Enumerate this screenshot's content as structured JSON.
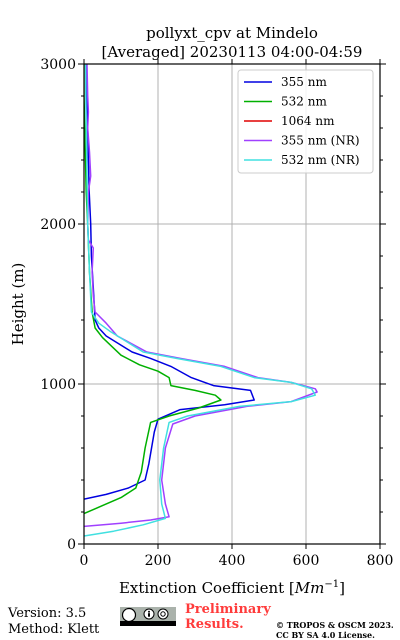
{
  "chart_data": {
    "type": "line",
    "title": "pollyxt_cpv at Mindelo",
    "subtitle": "[Averaged] 20230113 04:00-04:59",
    "xlabel": "Extinction Coefficient [",
    "xlabel_unit": "Mm",
    "xlabel_exp": "−1",
    "xlabel_end": "]",
    "ylabel": "Height (m)",
    "xlim": [
      0,
      800
    ],
    "ylim": [
      0,
      3000
    ],
    "xticks": [
      0,
      200,
      400,
      600,
      800
    ],
    "yticks": [
      0,
      1000,
      2000,
      3000
    ],
    "grid": true,
    "legend_position": "top-right",
    "series": [
      {
        "name": "355 nm",
        "color": "#0000e0",
        "points": [
          [
            0,
            280
          ],
          [
            60,
            310
          ],
          [
            120,
            350
          ],
          [
            165,
            400
          ],
          [
            175,
            500
          ],
          [
            190,
            700
          ],
          [
            200,
            780
          ],
          [
            260,
            840
          ],
          [
            380,
            870
          ],
          [
            460,
            900
          ],
          [
            450,
            960
          ],
          [
            350,
            990
          ],
          [
            290,
            1040
          ],
          [
            235,
            1110
          ],
          [
            180,
            1160
          ],
          [
            130,
            1200
          ],
          [
            60,
            1300
          ],
          [
            40,
            1350
          ],
          [
            30,
            1400
          ],
          [
            25,
            1600
          ],
          [
            20,
            1800
          ],
          [
            18,
            2000
          ],
          [
            14,
            2200
          ],
          [
            12,
            2400
          ],
          [
            10,
            2600
          ],
          [
            8,
            2800
          ],
          [
            6,
            3000
          ]
        ]
      },
      {
        "name": "532 nm",
        "color": "#00b000",
        "points": [
          [
            0,
            190
          ],
          [
            50,
            240
          ],
          [
            100,
            290
          ],
          [
            140,
            350
          ],
          [
            155,
            450
          ],
          [
            165,
            600
          ],
          [
            180,
            760
          ],
          [
            230,
            800
          ],
          [
            310,
            850
          ],
          [
            370,
            900
          ],
          [
            355,
            930
          ],
          [
            300,
            960
          ],
          [
            235,
            990
          ],
          [
            230,
            1040
          ],
          [
            200,
            1080
          ],
          [
            150,
            1120
          ],
          [
            100,
            1180
          ],
          [
            50,
            1290
          ],
          [
            30,
            1350
          ],
          [
            22,
            1450
          ],
          [
            15,
            1700
          ],
          [
            10,
            2000
          ],
          [
            6,
            2200
          ],
          [
            4,
            2400
          ],
          [
            2,
            2600
          ],
          [
            0,
            2800
          ],
          [
            0,
            3000
          ]
        ]
      },
      {
        "name": "1064 nm",
        "color": "#e00000",
        "points": []
      },
      {
        "name": "355 nm (NR)",
        "color": "#a040ff",
        "points": [
          [
            0,
            110
          ],
          [
            100,
            130
          ],
          [
            180,
            150
          ],
          [
            230,
            170
          ],
          [
            220,
            250
          ],
          [
            210,
            400
          ],
          [
            220,
            600
          ],
          [
            240,
            750
          ],
          [
            300,
            800
          ],
          [
            440,
            860
          ],
          [
            560,
            890
          ],
          [
            630,
            950
          ],
          [
            625,
            970
          ],
          [
            560,
            1010
          ],
          [
            470,
            1040
          ],
          [
            380,
            1110
          ],
          [
            260,
            1160
          ],
          [
            170,
            1200
          ],
          [
            90,
            1300
          ],
          [
            60,
            1380
          ],
          [
            30,
            1450
          ],
          [
            25,
            1550
          ],
          [
            22,
            1700
          ],
          [
            25,
            1850
          ],
          [
            12,
            1900
          ],
          [
            10,
            2000
          ],
          [
            12,
            2200
          ],
          [
            18,
            2300
          ],
          [
            15,
            2450
          ],
          [
            10,
            2600
          ],
          [
            12,
            2700
          ],
          [
            10,
            2800
          ],
          [
            8,
            3000
          ]
        ]
      },
      {
        "name": "532 nm (NR)",
        "color": "#40e0e0",
        "points": [
          [
            0,
            50
          ],
          [
            80,
            80
          ],
          [
            160,
            120
          ],
          [
            220,
            160
          ],
          [
            210,
            250
          ],
          [
            205,
            400
          ],
          [
            215,
            600
          ],
          [
            230,
            760
          ],
          [
            280,
            800
          ],
          [
            420,
            860
          ],
          [
            560,
            890
          ],
          [
            625,
            930
          ],
          [
            615,
            970
          ],
          [
            560,
            1010
          ],
          [
            460,
            1040
          ],
          [
            370,
            1110
          ],
          [
            250,
            1160
          ],
          [
            160,
            1200
          ],
          [
            70,
            1330
          ],
          [
            40,
            1380
          ],
          [
            20,
            1450
          ],
          [
            15,
            1700
          ],
          [
            10,
            2000
          ],
          [
            8,
            2300
          ],
          [
            6,
            2600
          ],
          [
            5,
            2800
          ],
          [
            4,
            3000
          ]
        ]
      }
    ]
  },
  "footer": {
    "version": "Version: 3.5",
    "method": "Method: Klett",
    "preliminary_line1": "Preliminary",
    "preliminary_line2": "Results.",
    "copyright_line1": "© TROPOS & OSCM 2023.",
    "copyright_line2": "CC BY SA 4.0 License."
  }
}
